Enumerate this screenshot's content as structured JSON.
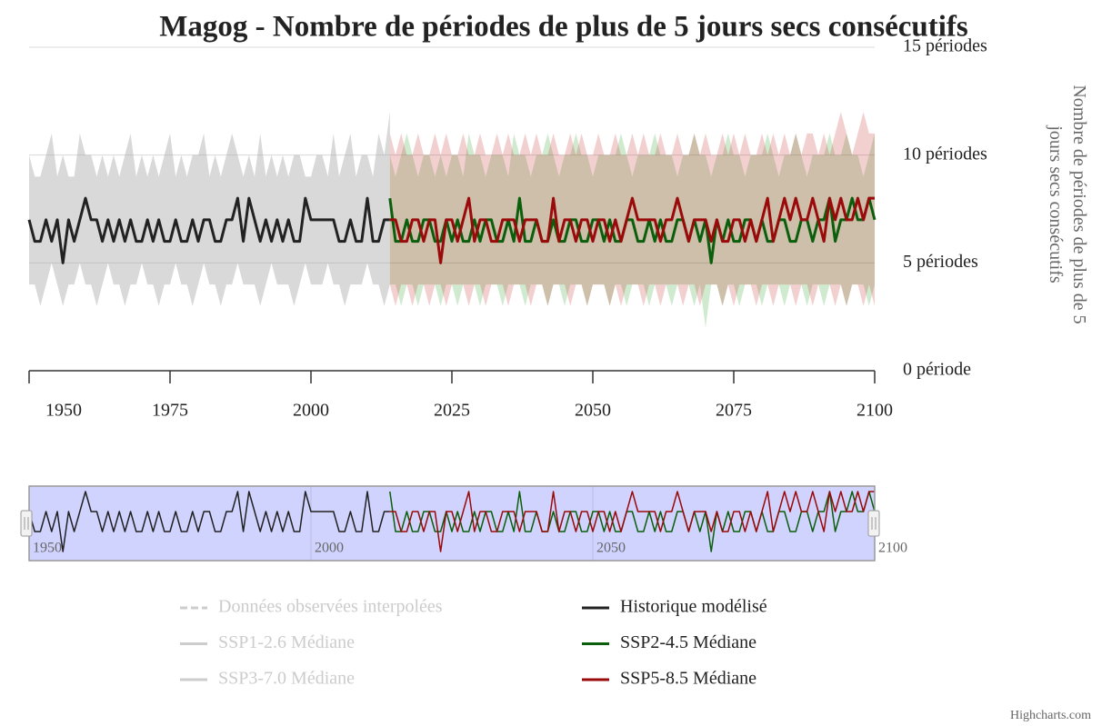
{
  "chart_data": {
    "type": "line",
    "title": "Magog - Nombre de périodes de plus de 5 jours secs consécutifs",
    "y_label": "Nombre de périodes de plus de 5 jours secs consécutifs",
    "credits": "Highcharts.com",
    "xlim": [
      1950,
      2100
    ],
    "xticks": [
      1950,
      1975,
      2000,
      2025,
      2050,
      2075,
      2100
    ],
    "navigator_xticks": [
      1950,
      2000,
      2050,
      2100
    ],
    "ylim": [
      0,
      15
    ],
    "yticks": [
      {
        "value": 0,
        "label": "0 période"
      },
      {
        "value": 5,
        "label": "5 périodes"
      },
      {
        "value": 10,
        "label": "10 périodes"
      },
      {
        "value": 15,
        "label": "15 périodes"
      }
    ],
    "grid": true,
    "series": [
      {
        "name": "Données observées interpolées",
        "color": "#cccccc",
        "dash": "dashed",
        "visible": false
      },
      {
        "name": "Historique modélisé",
        "color": "#222222",
        "band_color": "rgba(170,170,170,0.45)",
        "visible": true,
        "x": [
          1950,
          1951,
          1952,
          1953,
          1954,
          1955,
          1956,
          1957,
          1958,
          1959,
          1960,
          1961,
          1962,
          1963,
          1964,
          1965,
          1966,
          1967,
          1968,
          1969,
          1970,
          1971,
          1972,
          1973,
          1974,
          1975,
          1976,
          1977,
          1978,
          1979,
          1980,
          1981,
          1982,
          1983,
          1984,
          1985,
          1986,
          1987,
          1988,
          1989,
          1990,
          1991,
          1992,
          1993,
          1994,
          1995,
          1996,
          1997,
          1998,
          1999,
          2000,
          2001,
          2002,
          2003,
          2004,
          2005,
          2006,
          2007,
          2008,
          2009,
          2010,
          2011,
          2012,
          2013,
          2014
        ],
        "values": [
          7,
          6,
          6,
          7,
          6,
          7,
          5,
          7,
          6,
          7,
          8,
          7,
          7,
          6,
          7,
          6,
          7,
          6,
          7,
          6,
          6,
          7,
          6,
          7,
          6,
          6,
          7,
          6,
          6,
          7,
          6,
          7,
          7,
          6,
          6,
          7,
          7,
          8,
          6,
          8,
          7,
          6,
          7,
          6,
          7,
          6,
          7,
          6,
          6,
          8,
          7,
          7,
          7,
          7,
          7,
          6,
          6,
          7,
          6,
          6,
          8,
          6,
          6,
          7,
          7
        ],
        "high": [
          10,
          9,
          9,
          10,
          11,
          9,
          10,
          9,
          9,
          11,
          10,
          10,
          9,
          10,
          9,
          10,
          9,
          10,
          11,
          9,
          10,
          9,
          10,
          9,
          10,
          11,
          9,
          10,
          9,
          10,
          10,
          11,
          9,
          10,
          9,
          10,
          11,
          10,
          9,
          10,
          9,
          11,
          9,
          10,
          9,
          10,
          9,
          10,
          10,
          9,
          9,
          10,
          10,
          9,
          11,
          9,
          10,
          11,
          9,
          10,
          10,
          9,
          11,
          10,
          12
        ],
        "low": [
          4,
          4,
          3,
          4,
          5,
          4,
          3,
          4,
          4,
          5,
          4,
          4,
          3,
          4,
          5,
          4,
          4,
          3,
          4,
          4,
          5,
          4,
          4,
          3,
          4,
          4,
          5,
          4,
          4,
          3,
          4,
          5,
          4,
          4,
          3,
          4,
          4,
          5,
          4,
          4,
          4,
          3,
          4,
          5,
          4,
          4,
          4,
          3,
          4,
          5,
          4,
          4,
          4,
          5,
          4,
          4,
          3,
          4,
          4,
          4,
          5,
          4,
          4,
          3,
          4
        ]
      },
      {
        "name": "SSP1-2.6 Médiane",
        "color": "#cccccc",
        "visible": false
      },
      {
        "name": "SSP2-4.5 Médiane",
        "color": "#0b5e0b",
        "band_color": "rgba(40,160,40,0.22)",
        "visible": true,
        "x": [
          2014,
          2015,
          2016,
          2017,
          2018,
          2019,
          2020,
          2021,
          2022,
          2023,
          2024,
          2025,
          2026,
          2027,
          2028,
          2029,
          2030,
          2031,
          2032,
          2033,
          2034,
          2035,
          2036,
          2037,
          2038,
          2039,
          2040,
          2041,
          2042,
          2043,
          2044,
          2045,
          2046,
          2047,
          2048,
          2049,
          2050,
          2051,
          2052,
          2053,
          2054,
          2055,
          2056,
          2057,
          2058,
          2059,
          2060,
          2061,
          2062,
          2063,
          2064,
          2065,
          2066,
          2067,
          2068,
          2069,
          2070,
          2071,
          2072,
          2073,
          2074,
          2075,
          2076,
          2077,
          2078,
          2079,
          2080,
          2081,
          2082,
          2083,
          2084,
          2085,
          2086,
          2087,
          2088,
          2089,
          2090,
          2091,
          2092,
          2093,
          2094,
          2095,
          2096,
          2097,
          2098,
          2099,
          2100
        ],
        "values": [
          8,
          6,
          6,
          7,
          6,
          6,
          7,
          7,
          6,
          6,
          7,
          6,
          7,
          6,
          6,
          7,
          6,
          7,
          7,
          6,
          6,
          7,
          6,
          8,
          6,
          6,
          7,
          6,
          6,
          7,
          6,
          6,
          7,
          7,
          6,
          6,
          7,
          7,
          6,
          7,
          6,
          6,
          7,
          7,
          6,
          6,
          7,
          6,
          7,
          6,
          6,
          7,
          7,
          6,
          7,
          6,
          7,
          5,
          7,
          6,
          7,
          6,
          6,
          7,
          7,
          6,
          7,
          6,
          6,
          7,
          7,
          6,
          6,
          7,
          7,
          6,
          7,
          7,
          8,
          6,
          7,
          7,
          8,
          7,
          7,
          8,
          7
        ],
        "high": [
          10,
          9,
          10,
          11,
          10,
          9,
          10,
          10,
          9,
          10,
          9,
          10,
          10,
          9,
          11,
          10,
          10,
          9,
          10,
          10,
          10,
          9,
          11,
          10,
          10,
          9,
          10,
          10,
          11,
          10,
          9,
          10,
          10,
          11,
          10,
          10,
          9,
          10,
          10,
          10,
          10,
          11,
          10,
          9,
          10,
          10,
          10,
          11,
          10,
          10,
          10,
          9,
          10,
          10,
          11,
          10,
          10,
          9,
          10,
          10,
          11,
          10,
          10,
          9,
          10,
          10,
          10,
          11,
          10,
          9,
          10,
          10,
          11,
          10,
          9,
          10,
          10,
          10,
          11,
          10,
          10,
          11,
          10,
          10,
          9,
          10,
          11
        ],
        "low": [
          4,
          4,
          3,
          4,
          4,
          3,
          4,
          4,
          4,
          3,
          4,
          4,
          3,
          4,
          4,
          4,
          3,
          4,
          4,
          4,
          3,
          4,
          4,
          4,
          3,
          4,
          4,
          4,
          3,
          4,
          4,
          3,
          4,
          4,
          4,
          3,
          4,
          4,
          4,
          3,
          4,
          4,
          3,
          4,
          4,
          4,
          3,
          4,
          4,
          4,
          3,
          4,
          4,
          4,
          3,
          4,
          2,
          4,
          4,
          3,
          4,
          4,
          3,
          4,
          4,
          4,
          3,
          4,
          4,
          4,
          3,
          4,
          4,
          4,
          3,
          4,
          4,
          3,
          4,
          4,
          4,
          3,
          4,
          4,
          4,
          3,
          4
        ]
      },
      {
        "name": "SSP3-7.0 Médiane",
        "color": "#cccccc",
        "visible": false
      },
      {
        "name": "SSP5-8.5 Médiane",
        "color": "#9a0a0a",
        "band_color": "rgba(200,40,40,0.22)",
        "visible": true,
        "x": [
          2014,
          2015,
          2016,
          2017,
          2018,
          2019,
          2020,
          2021,
          2022,
          2023,
          2024,
          2025,
          2026,
          2027,
          2028,
          2029,
          2030,
          2031,
          2032,
          2033,
          2034,
          2035,
          2036,
          2037,
          2038,
          2039,
          2040,
          2041,
          2042,
          2043,
          2044,
          2045,
          2046,
          2047,
          2048,
          2049,
          2050,
          2051,
          2052,
          2053,
          2054,
          2055,
          2056,
          2057,
          2058,
          2059,
          2060,
          2061,
          2062,
          2063,
          2064,
          2065,
          2066,
          2067,
          2068,
          2069,
          2070,
          2071,
          2072,
          2073,
          2074,
          2075,
          2076,
          2077,
          2078,
          2079,
          2080,
          2081,
          2082,
          2083,
          2084,
          2085,
          2086,
          2087,
          2088,
          2089,
          2090,
          2091,
          2092,
          2093,
          2094,
          2095,
          2096,
          2097,
          2098,
          2099,
          2100
        ],
        "values": [
          7,
          7,
          6,
          6,
          7,
          7,
          6,
          7,
          7,
          5,
          7,
          7,
          6,
          7,
          8,
          6,
          7,
          7,
          6,
          6,
          7,
          7,
          7,
          6,
          7,
          7,
          7,
          6,
          6,
          8,
          6,
          7,
          7,
          6,
          7,
          7,
          6,
          7,
          7,
          6,
          7,
          6,
          7,
          8,
          7,
          7,
          7,
          7,
          6,
          7,
          7,
          8,
          7,
          6,
          7,
          7,
          7,
          6,
          7,
          6,
          6,
          7,
          7,
          6,
          7,
          6,
          7,
          8,
          6,
          7,
          8,
          7,
          8,
          7,
          7,
          8,
          7,
          6,
          8,
          7,
          8,
          7,
          7,
          8,
          7,
          8,
          8
        ],
        "high": [
          11,
          10,
          11,
          10,
          10,
          11,
          10,
          10,
          11,
          10,
          11,
          10,
          10,
          11,
          10,
          10,
          11,
          10,
          10,
          11,
          10,
          11,
          10,
          10,
          11,
          10,
          11,
          10,
          10,
          11,
          10,
          10,
          11,
          10,
          11,
          10,
          10,
          11,
          10,
          10,
          11,
          10,
          10,
          11,
          10,
          11,
          10,
          10,
          11,
          10,
          10,
          11,
          10,
          10,
          11,
          10,
          11,
          10,
          10,
          11,
          10,
          11,
          10,
          11,
          10,
          10,
          11,
          10,
          11,
          10,
          11,
          10,
          11,
          10,
          11,
          11,
          10,
          11,
          10,
          11,
          12,
          11,
          10,
          11,
          12,
          11,
          11
        ],
        "low": [
          4,
          3,
          4,
          4,
          3,
          4,
          4,
          3,
          4,
          4,
          3,
          4,
          4,
          4,
          3,
          4,
          4,
          3,
          4,
          4,
          4,
          3,
          4,
          4,
          4,
          3,
          4,
          4,
          3,
          4,
          4,
          4,
          3,
          4,
          4,
          3,
          4,
          4,
          4,
          3,
          4,
          3,
          4,
          4,
          4,
          3,
          4,
          4,
          3,
          4,
          4,
          4,
          3,
          4,
          4,
          3,
          4,
          4,
          4,
          3,
          4,
          3,
          4,
          4,
          4,
          3,
          4,
          4,
          3,
          4,
          4,
          4,
          3,
          4,
          4,
          3,
          4,
          4,
          4,
          3,
          4,
          3,
          4,
          4,
          3,
          4,
          3
        ]
      }
    ]
  }
}
